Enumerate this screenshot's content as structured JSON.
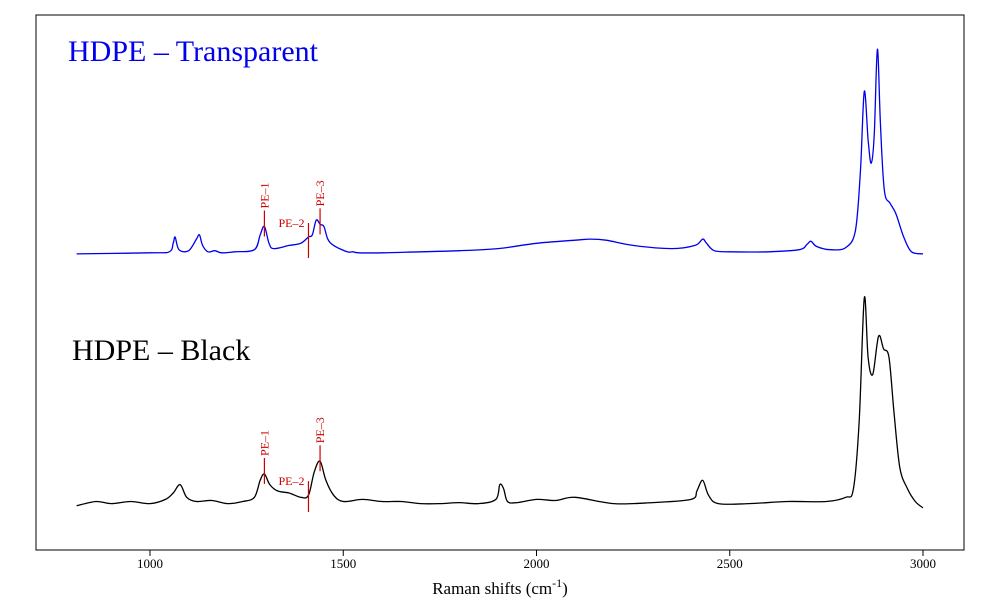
{
  "chart_data": {
    "type": "line",
    "xlabel": "Raman shifts",
    "xlabel_unit_base": "cm",
    "xlabel_unit_exp": "-1",
    "xlim": [
      800,
      3000
    ],
    "x_ticks": [
      "1000",
      "1500",
      "2000",
      "2500",
      "3000"
    ],
    "x_tick_values": [
      1000,
      1500,
      2000,
      2500,
      3000
    ],
    "grid": false,
    "colors": {
      "transparent": "#0000ee",
      "black": "#000000",
      "markers": "#cc0000"
    },
    "series": [
      {
        "name": "HDPE – Transparent",
        "color": "#0000ee",
        "x": [
          810,
          1000,
          1050,
          1060,
          1065,
          1075,
          1100,
          1120,
          1128,
          1136,
          1150,
          1168,
          1185,
          1220,
          1270,
          1285,
          1296,
          1308,
          1320,
          1360,
          1390,
          1410,
          1420,
          1430,
          1440,
          1450,
          1460,
          1475,
          1510,
          1525,
          1540,
          1600,
          1700,
          1800,
          1900,
          2000,
          2100,
          2140,
          2180,
          2250,
          2350,
          2410,
          2430,
          2440,
          2460,
          2500,
          2600,
          2680,
          2700,
          2710,
          2725,
          2760,
          2800,
          2825,
          2838,
          2848,
          2858,
          2866,
          2874,
          2882,
          2890,
          2900,
          2915,
          2930,
          2950,
          2970,
          3000
        ],
        "y": [
          0.01,
          0.015,
          0.02,
          0.06,
          0.09,
          0.03,
          0.025,
          0.08,
          0.1,
          0.05,
          0.02,
          0.025,
          0.015,
          0.02,
          0.03,
          0.1,
          0.14,
          0.06,
          0.035,
          0.05,
          0.06,
          0.09,
          0.1,
          0.17,
          0.15,
          0.14,
          0.08,
          0.05,
          0.02,
          0.02,
          0.015,
          0.015,
          0.02,
          0.025,
          0.035,
          0.06,
          0.075,
          0.08,
          0.075,
          0.05,
          0.035,
          0.05,
          0.08,
          0.06,
          0.025,
          0.02,
          0.02,
          0.03,
          0.055,
          0.07,
          0.045,
          0.03,
          0.04,
          0.12,
          0.4,
          0.78,
          0.55,
          0.44,
          0.58,
          0.98,
          0.62,
          0.31,
          0.25,
          0.2,
          0.09,
          0.02,
          0.01
        ]
      },
      {
        "name": "HDPE – Black",
        "color": "#000000",
        "x": [
          810,
          860,
          900,
          950,
          1000,
          1040,
          1060,
          1078,
          1095,
          1120,
          1160,
          1200,
          1240,
          1270,
          1285,
          1296,
          1310,
          1330,
          1360,
          1390,
          1410,
          1425,
          1440,
          1455,
          1475,
          1500,
          1550,
          1600,
          1650,
          1700,
          1750,
          1800,
          1850,
          1895,
          1905,
          1915,
          1925,
          1950,
          2000,
          2050,
          2100,
          2200,
          2300,
          2400,
          2415,
          2430,
          2445,
          2470,
          2550,
          2650,
          2750,
          2800,
          2820,
          2835,
          2848,
          2858,
          2870,
          2885,
          2898,
          2912,
          2925,
          2940,
          2960,
          2980,
          3000
        ],
        "y": [
          0.02,
          0.04,
          0.03,
          0.04,
          0.03,
          0.05,
          0.08,
          0.12,
          0.06,
          0.04,
          0.045,
          0.03,
          0.04,
          0.06,
          0.14,
          0.17,
          0.12,
          0.09,
          0.08,
          0.06,
          0.07,
          0.18,
          0.23,
          0.14,
          0.07,
          0.04,
          0.05,
          0.04,
          0.04,
          0.03,
          0.03,
          0.035,
          0.03,
          0.05,
          0.12,
          0.1,
          0.04,
          0.035,
          0.05,
          0.045,
          0.06,
          0.03,
          0.035,
          0.05,
          0.09,
          0.14,
          0.07,
          0.03,
          0.03,
          0.04,
          0.04,
          0.06,
          0.1,
          0.42,
          1.0,
          0.72,
          0.64,
          0.82,
          0.76,
          0.72,
          0.46,
          0.2,
          0.1,
          0.04,
          0.01
        ]
      }
    ],
    "panels": [
      {
        "label": "HDPE – Transparent",
        "color": "#0000ee"
      },
      {
        "label": "HDPE – Black",
        "color": "#000000"
      }
    ],
    "peak_markers": [
      {
        "name": "PE–1",
        "x": 1296
      },
      {
        "name": "PE–2",
        "x": 1410
      },
      {
        "name": "PE–3",
        "x": 1440
      }
    ]
  }
}
